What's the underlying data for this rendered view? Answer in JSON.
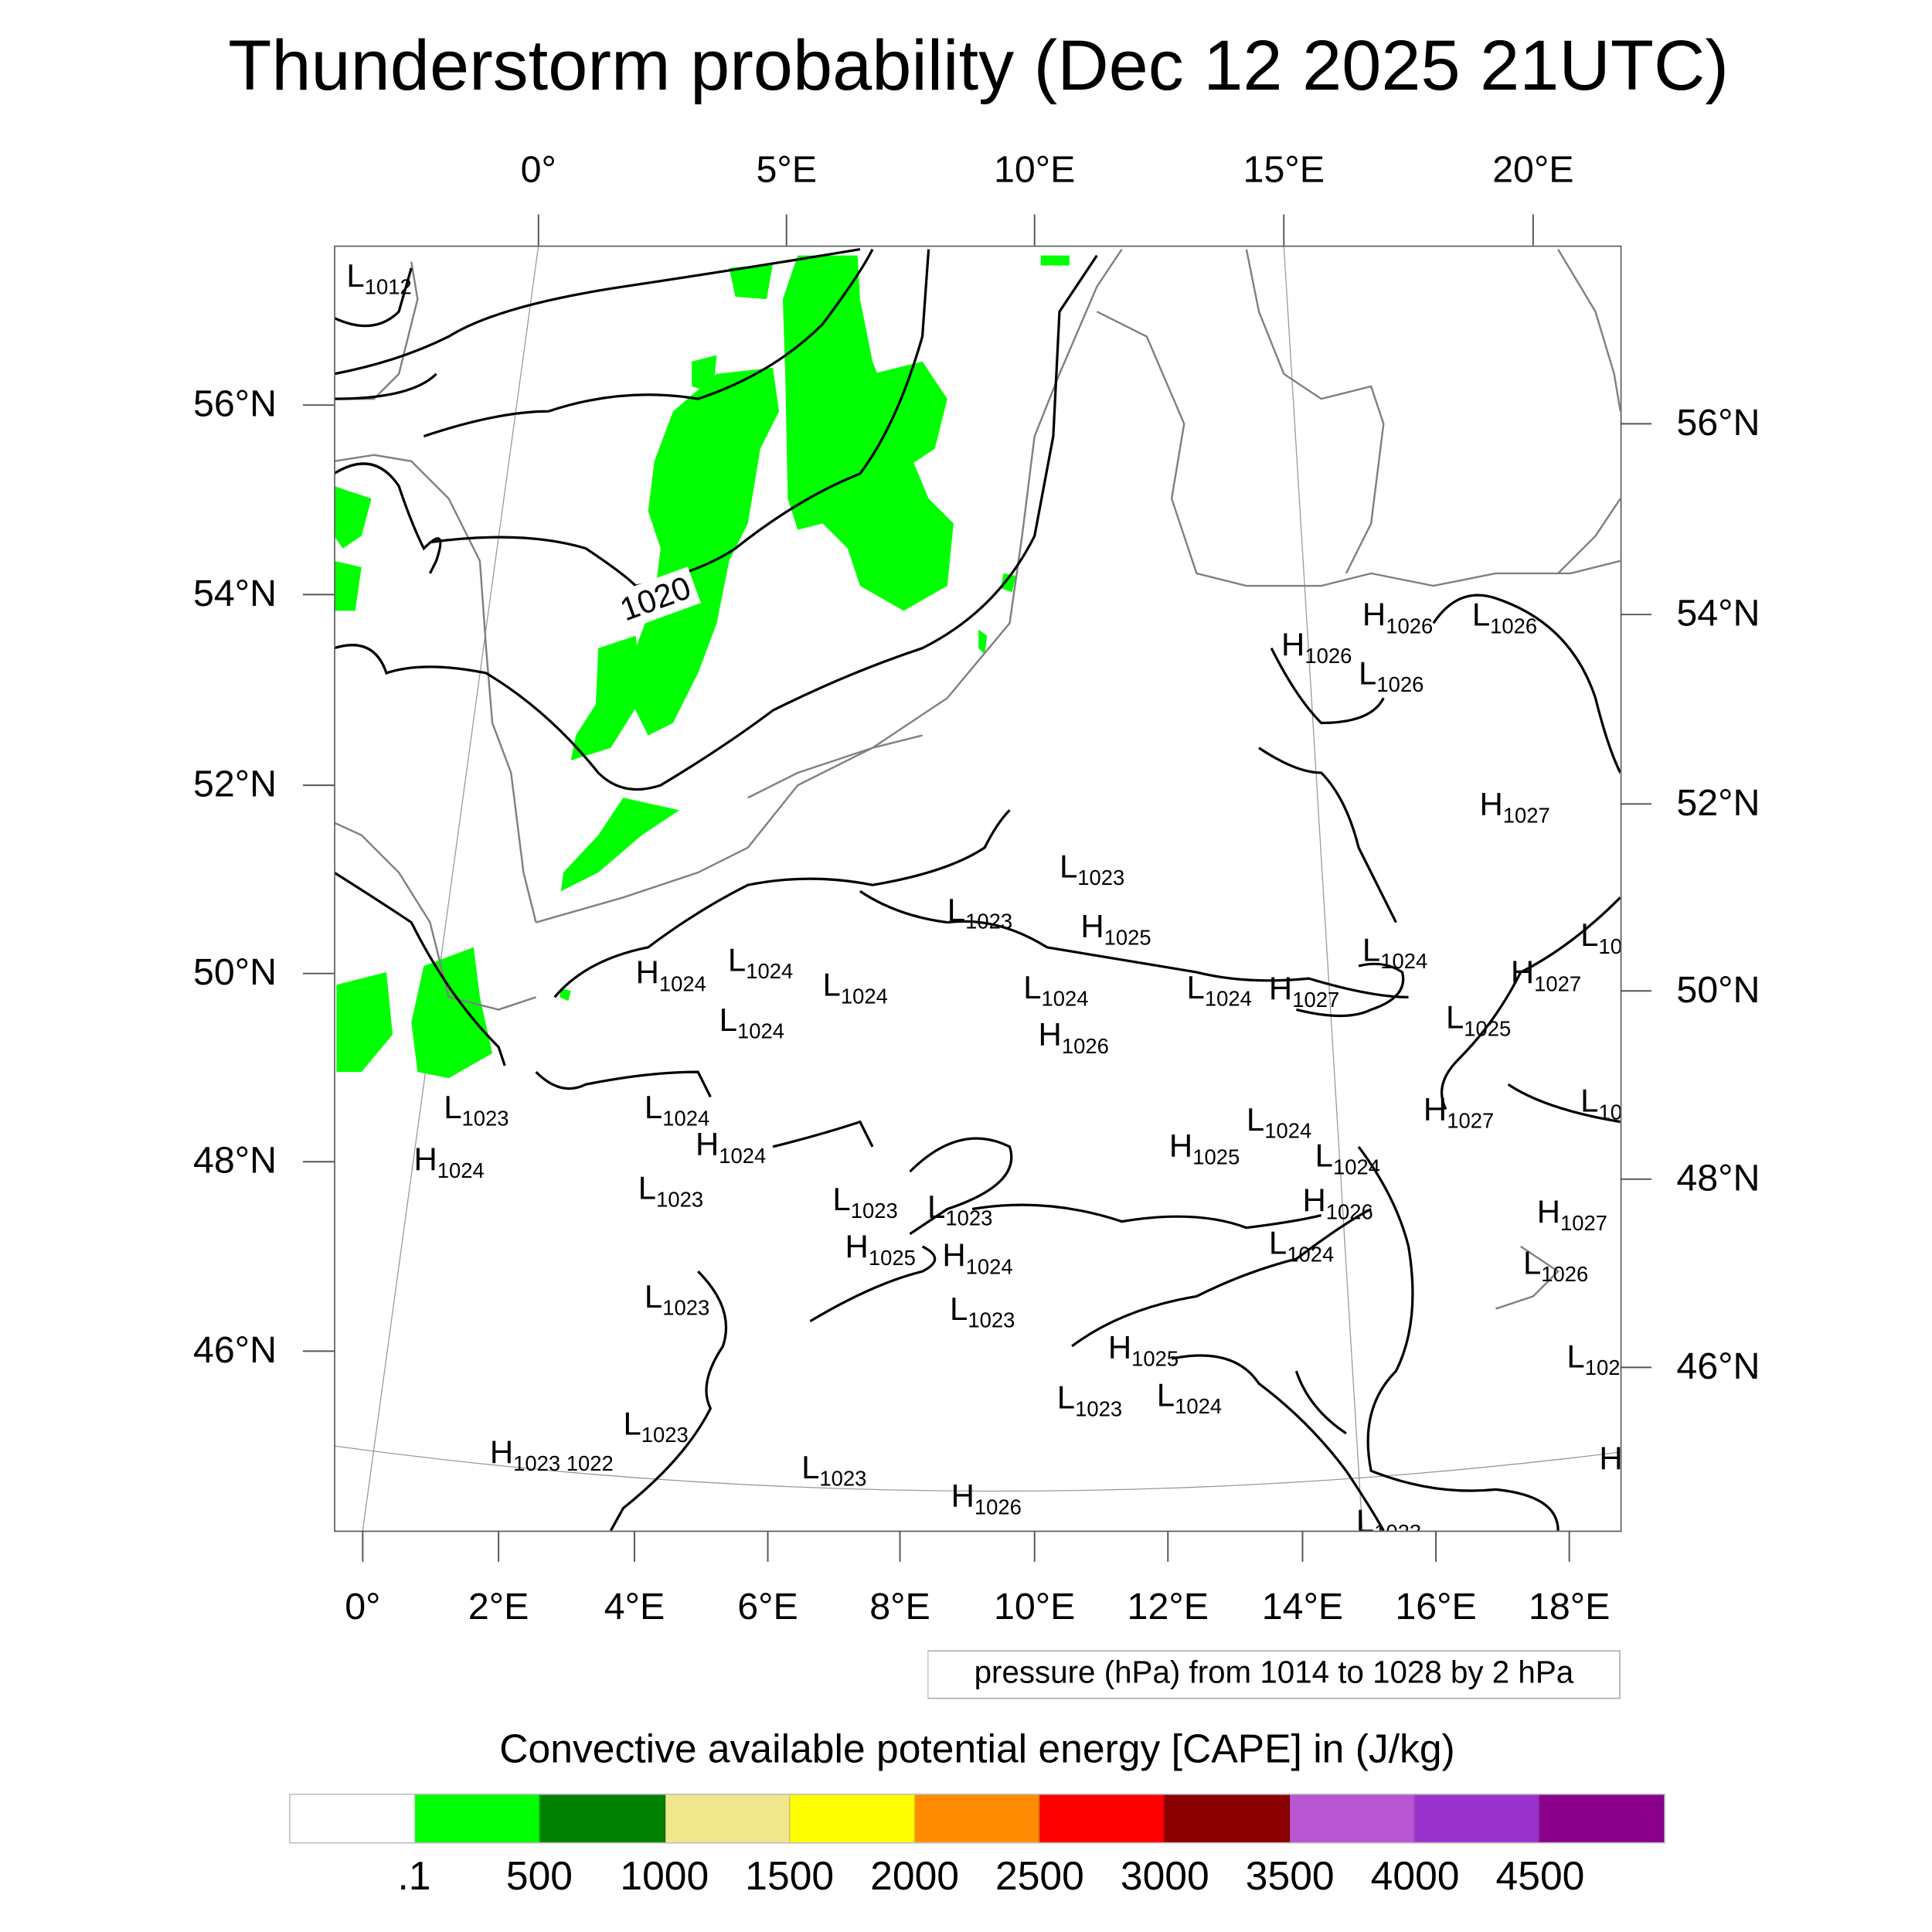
{
  "title": "Thunderstorm probability (Dec 12 2025 21UTC)",
  "top_axis": [
    "0°",
    "5°E",
    "10°E",
    "15°E",
    "20°E"
  ],
  "bottom_axis": [
    "0°",
    "2°E",
    "4°E",
    "6°E",
    "8°E",
    "10°E",
    "12°E",
    "14°E",
    "16°E",
    "18°E"
  ],
  "left_axis": [
    "56°N",
    "54°N",
    "52°N",
    "50°N",
    "48°N",
    "46°N"
  ],
  "right_axis": [
    "56°N",
    "54°N",
    "52°N",
    "50°N",
    "48°N",
    "46°N"
  ],
  "contour_label": "1020",
  "pressure_centers": [
    {
      "t": "L",
      "v": "1012"
    },
    {
      "t": "H",
      "v": "1026"
    },
    {
      "t": "L",
      "v": "1026"
    },
    {
      "t": "H",
      "v": "1026"
    },
    {
      "t": "L",
      "v": "1026"
    },
    {
      "t": "H",
      "v": "1027"
    },
    {
      "t": "L",
      "v": "1023"
    },
    {
      "t": "L",
      "v": "1023"
    },
    {
      "t": "H",
      "v": "1025"
    },
    {
      "t": "L",
      "v": "10"
    },
    {
      "t": "H",
      "v": "1024"
    },
    {
      "t": "L",
      "v": "1024"
    },
    {
      "t": "L",
      "v": "1024"
    },
    {
      "t": "L",
      "v": "1024"
    },
    {
      "t": "L",
      "v": "1024"
    },
    {
      "t": "L",
      "v": "1024"
    },
    {
      "t": "H",
      "v": "1027"
    },
    {
      "t": "L",
      "v": "1024"
    },
    {
      "t": "H",
      "v": "1027"
    },
    {
      "t": "L",
      "v": "1025"
    },
    {
      "t": "H",
      "v": "1026"
    },
    {
      "t": "L",
      "v": "1023"
    },
    {
      "t": "H",
      "v": "1024"
    },
    {
      "t": "L",
      "v": "1024"
    },
    {
      "t": "H",
      "v": "1024"
    },
    {
      "t": "L",
      "v": "1023"
    },
    {
      "t": "L",
      "v": "10"
    },
    {
      "t": "H",
      "v": "1027"
    },
    {
      "t": "H",
      "v": "1025"
    },
    {
      "t": "L",
      "v": "1024"
    },
    {
      "t": "L",
      "v": "1024"
    },
    {
      "t": "H",
      "v": "1026"
    },
    {
      "t": "L",
      "v": "1023"
    },
    {
      "t": "L",
      "v": "1023"
    },
    {
      "t": "H",
      "v": "1025"
    },
    {
      "t": "H",
      "v": "1024"
    },
    {
      "t": "L",
      "v": "1024"
    },
    {
      "t": "H",
      "v": "1027"
    },
    {
      "t": "L",
      "v": "1026"
    },
    {
      "t": "L",
      "v": "1023"
    },
    {
      "t": "L",
      "v": "1023"
    },
    {
      "t": "H",
      "v": "1025"
    },
    {
      "t": "L",
      "v": "1024"
    },
    {
      "t": "L",
      "v": "1023"
    },
    {
      "t": "L",
      "v": "102"
    },
    {
      "t": "L",
      "v": "1023"
    },
    {
      "t": "H",
      "v": "1023 1022"
    },
    {
      "t": "L",
      "v": "1023"
    },
    {
      "t": "H",
      "v": "1026"
    },
    {
      "t": "H",
      "v": ""
    },
    {
      "t": "L",
      "v": "1023"
    }
  ],
  "pressure_legend": "pressure (hPa) from 1014 to 1028 by 2 hPa",
  "cape_title": "Convective available potential energy [CAPE] in (J/kg)",
  "colorbar": {
    "colors": [
      "#ffffff",
      "#00ff00",
      "#008000",
      "#f0e68c",
      "#ffff00",
      "#ff8c00",
      "#ff0000",
      "#8b0000",
      "#ba55d3",
      "#9932cc",
      "#8b008b"
    ],
    "labels": [
      ".1",
      "500",
      "1000",
      "1500",
      "2000",
      "2500",
      "3000",
      "3500",
      "4000",
      "4500"
    ]
  },
  "cape_fill_color": "#00ff00"
}
